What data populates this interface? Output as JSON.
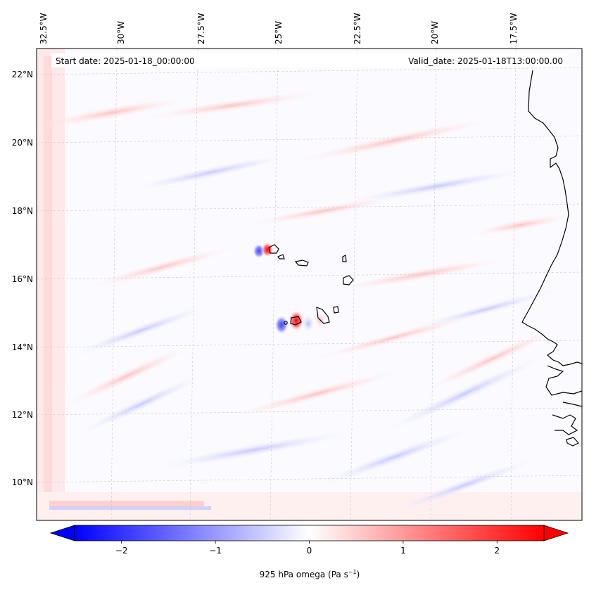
{
  "header": {
    "start_date": "Start date: 2025-01-18_00:00:00",
    "valid_date": "Valid_date: 2025-01-18T13:00:00.00"
  },
  "axes": {
    "lon_labels": [
      "32.5°W",
      "30°W",
      "27.5°W",
      "25°W",
      "22.5°W",
      "20°W",
      "17.5°W"
    ],
    "lat_labels": [
      "22°N",
      "20°N",
      "18°N",
      "16°N",
      "14°N",
      "12°N",
      "10°N"
    ]
  },
  "colorbar": {
    "ticks": [
      "−2",
      "−1",
      "0",
      "1",
      "2"
    ],
    "tick_values": [
      -2,
      -1,
      0,
      1,
      2
    ],
    "range": [
      -2.5,
      2.5
    ],
    "variable": "925 hPa omega (Pa s",
    "unit_exponent": "−1",
    "unit_close": ")",
    "colormap": "bwr",
    "low_color": "#0000ff",
    "mid_color": "#ffffff",
    "high_color": "#ff0000"
  },
  "map": {
    "coastline_color": "#000000",
    "gridline_color": "#cccccc",
    "features": [
      "Cape Verde islands",
      "West African coast"
    ]
  }
}
